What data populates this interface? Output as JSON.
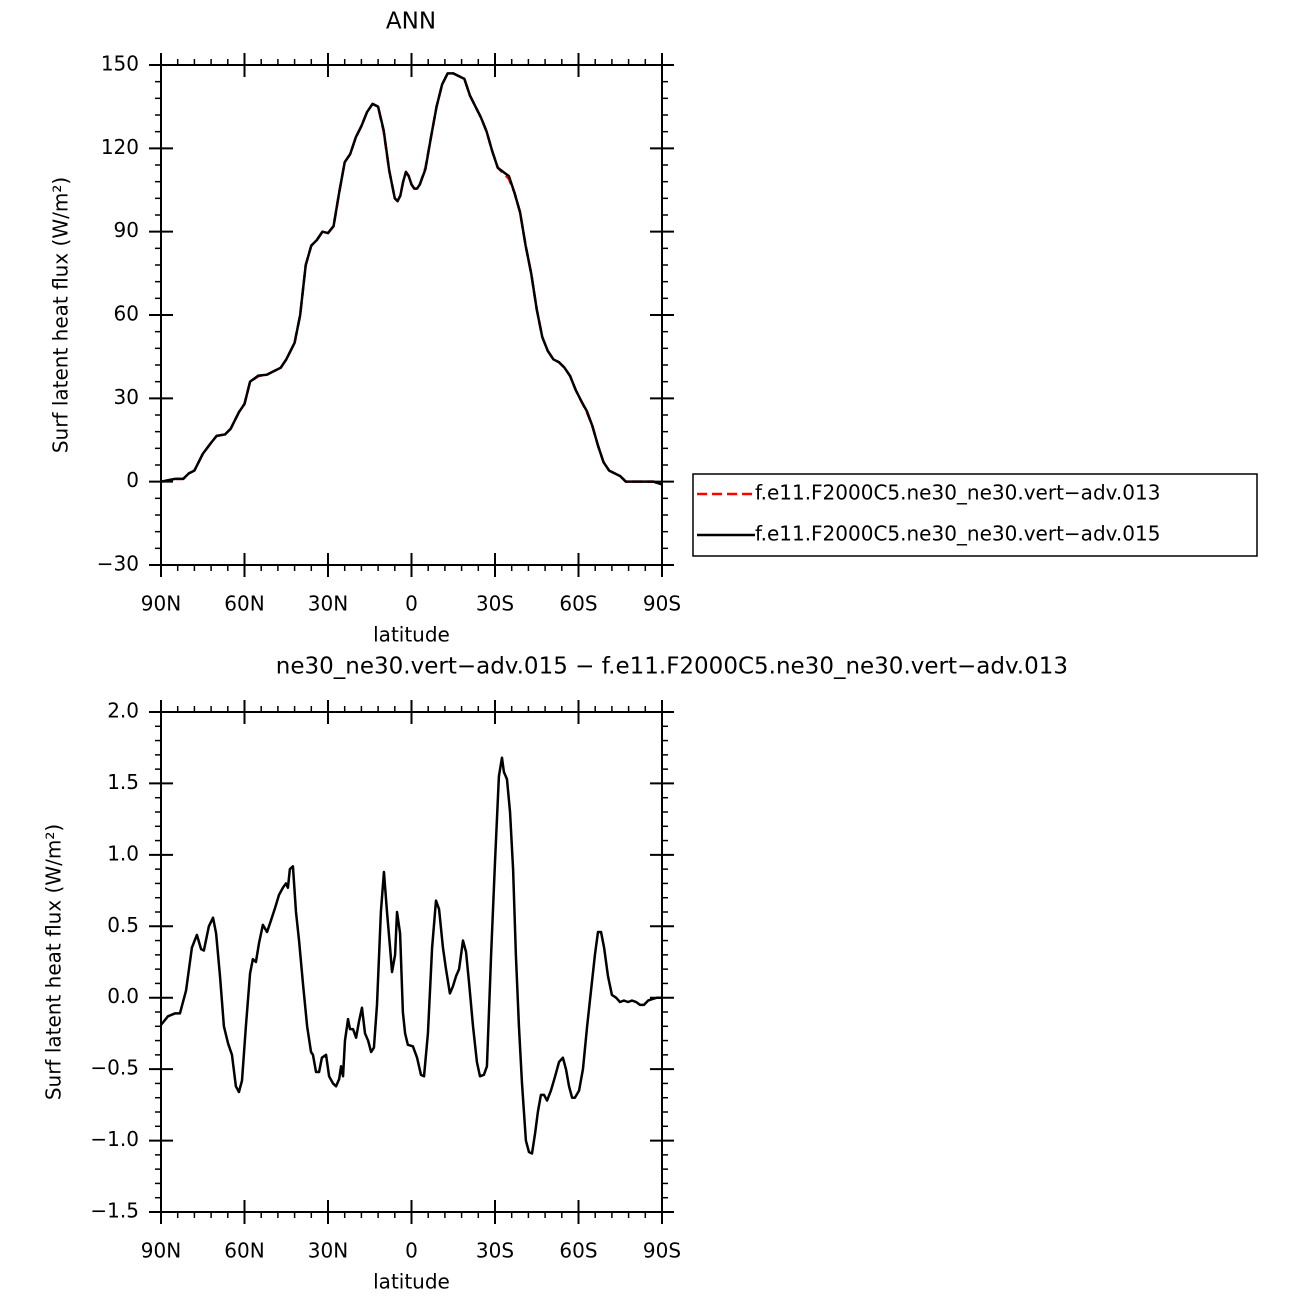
{
  "chart_data": [
    {
      "type": "line",
      "title": "ANN",
      "xlabel": "latitude",
      "ylabel": "Surf latent heat flux (W/m²)",
      "x": [
        90,
        85,
        82,
        80,
        78,
        75,
        72,
        70,
        67,
        65,
        62,
        60,
        58,
        55,
        52,
        50,
        47,
        45,
        42,
        40,
        38,
        36,
        34,
        32,
        30,
        28,
        26,
        24,
        22,
        20,
        18,
        16,
        14,
        12,
        10,
        8,
        6,
        5,
        4,
        3,
        2,
        1,
        0,
        -1,
        -2,
        -3,
        -5,
        -7,
        -9,
        -11,
        -13,
        -15,
        -17,
        -19,
        -21,
        -23,
        -25,
        -27,
        -29,
        -31,
        -33,
        -35,
        -37,
        -39,
        -41,
        -43,
        -45,
        -47,
        -49,
        -51,
        -53,
        -55,
        -57,
        -59,
        -61,
        -63,
        -65,
        -67,
        -69,
        -71,
        -73,
        -75,
        -77,
        -80,
        -83,
        -87,
        -90
      ],
      "series": [
        {
          "name": "f.e11.F2000C5.ne30_ne30.vert−adv.013",
          "color": "#ff0000",
          "dashed": true,
          "values": [
            0,
            1,
            1,
            3,
            4,
            10,
            14,
            16.5,
            17,
            19,
            25,
            28,
            36,
            38,
            38.5,
            39.5,
            41,
            44,
            50,
            60,
            78,
            85,
            87,
            90,
            89.5,
            92,
            104,
            115,
            118,
            124,
            128,
            133,
            136,
            135,
            126,
            112,
            102,
            101,
            103,
            108,
            111.5,
            110,
            107,
            105.5,
            105.5,
            107,
            113,
            124,
            135,
            143,
            147,
            147,
            146,
            145,
            139,
            135,
            131,
            126,
            119,
            113,
            111,
            109,
            104,
            97,
            85,
            75,
            62,
            52,
            47,
            44,
            43,
            41,
            38,
            33,
            29,
            25,
            20,
            13,
            7,
            4,
            3,
            2,
            0,
            0,
            0,
            0,
            -1
          ]
        },
        {
          "name": "f.e11.F2000C5.ne30_ne30.vert−adv.015",
          "color": "#000000",
          "dashed": false,
          "values": [
            0,
            1,
            1,
            3,
            4,
            10,
            14,
            16.5,
            17,
            19,
            25,
            28,
            36,
            38.2,
            38.5,
            39.5,
            41,
            44,
            50,
            60,
            78,
            85,
            87,
            90,
            89.5,
            92,
            104,
            115,
            118,
            124,
            128,
            133,
            136,
            135,
            126.5,
            112,
            102,
            101,
            103,
            108,
            111.5,
            110,
            107,
            105.5,
            105.5,
            107,
            112.5,
            124,
            135,
            143,
            147,
            147,
            146,
            145,
            139,
            135,
            131,
            126,
            119,
            113,
            111.5,
            110,
            104,
            97,
            85,
            75,
            62,
            52,
            47,
            44,
            43,
            41,
            38,
            33,
            29,
            25.4,
            20,
            13,
            7,
            4,
            3,
            2,
            0,
            0,
            0,
            0,
            -1
          ]
        }
      ],
      "xlim": [
        90,
        -90
      ],
      "ylim": [
        -30,
        150
      ],
      "xticks": [
        {
          "value": 90,
          "label": "90N"
        },
        {
          "value": 60,
          "label": "60N"
        },
        {
          "value": 30,
          "label": "30N"
        },
        0,
        {
          "value": -30,
          "label": "30S"
        },
        {
          "value": -60,
          "label": "60S"
        },
        {
          "value": -90,
          "label": "90S"
        }
      ],
      "yticks": [
        {
          "value": -30,
          "label": "−30"
        },
        0,
        30,
        60,
        90,
        120,
        150
      ],
      "legend": "right"
    },
    {
      "type": "line",
      "title": "ne30_ne30.vert−adv.015 − f.e11.F2000C5.ne30_ne30.vert−adv.013",
      "xlabel": "latitude",
      "ylabel": "Surf latent heat flux (W/m²)",
      "x": [
        90,
        87.5,
        85,
        83.2,
        81,
        78.9,
        77.1,
        75.6,
        74.6,
        72.8,
        71.3,
        70.2,
        68.8,
        67.4,
        65.9,
        64.5,
        63.1,
        62,
        60.9,
        59.5,
        58,
        57,
        55.9,
        54.8,
        53.4,
        51.9,
        50.5,
        49,
        47.6,
        46.2,
        45.1,
        44.4,
        43.7,
        42.6,
        41.5,
        40.4,
        39,
        37.5,
        36.1,
        35.4,
        34.3,
        33.2,
        32.2,
        30.7,
        29.6,
        28.2,
        27.1,
        26,
        25.3,
        24.6,
        23.9,
        22.8,
        22.1,
        21,
        19.9,
        18.9,
        17.8,
        16.7,
        15.6,
        14.5,
        13.5,
        12.4,
        11,
        9.9,
        8.8,
        7.7,
        7,
        5.9,
        5.2,
        4.1,
        3.1,
        2.3,
        1.3,
        -0.5,
        -2,
        -3.4,
        -4.5,
        -5.9,
        -7.4,
        -8.8,
        -9.9,
        -11.3,
        -12.4,
        -13.8,
        -14.9,
        -16,
        -17.1,
        -18.5,
        -19.6,
        -20.7,
        -22.1,
        -23.5,
        -24.6,
        -26,
        -27.1,
        -28.6,
        -30,
        -31.4,
        -32.5,
        -33.2,
        -34.3,
        -35.4,
        -36.5,
        -37.5,
        -38.6,
        -39.7,
        -41.1,
        -42.2,
        -43.3,
        -44.4,
        -45.4,
        -46.5,
        -47.6,
        -48.7,
        -50.1,
        -51.6,
        -53,
        -54.4,
        -55.5,
        -56.6,
        -57.7,
        -58.7,
        -60.2,
        -61.6,
        -63.1,
        -64.5,
        -65.9,
        -67,
        -68.1,
        -69.2,
        -70.6,
        -72,
        -73.5,
        -74.9,
        -76.3,
        -77.8,
        -79.2,
        -80.7,
        -82.1,
        -83.5,
        -85,
        -86.4,
        -88.2,
        -90
      ],
      "series": [
        {
          "color": "#000000",
          "dashed": false,
          "values": [
            -0.19,
            -0.13,
            -0.11,
            -0.11,
            0.05,
            0.35,
            0.44,
            0.34,
            0.33,
            0.5,
            0.56,
            0.45,
            0.15,
            -0.2,
            -0.32,
            -0.4,
            -0.62,
            -0.66,
            -0.58,
            -0.2,
            0.17,
            0.27,
            0.25,
            0.38,
            0.51,
            0.46,
            0.54,
            0.63,
            0.72,
            0.77,
            0.8,
            0.77,
            0.9,
            0.92,
            0.6,
            0.4,
            0.1,
            -0.2,
            -0.38,
            -0.4,
            -0.52,
            -0.52,
            -0.42,
            -0.4,
            -0.55,
            -0.6,
            -0.62,
            -0.57,
            -0.48,
            -0.55,
            -0.3,
            -0.15,
            -0.22,
            -0.22,
            -0.28,
            -0.17,
            -0.07,
            -0.25,
            -0.3,
            -0.38,
            -0.35,
            -0.05,
            0.6,
            0.88,
            0.6,
            0.35,
            0.18,
            0.3,
            0.6,
            0.45,
            -0.1,
            -0.25,
            -0.33,
            -0.34,
            -0.42,
            -0.54,
            -0.55,
            -0.25,
            0.35,
            0.68,
            0.62,
            0.35,
            0.2,
            0.03,
            0.08,
            0.15,
            0.2,
            0.4,
            0.32,
            0.1,
            -0.2,
            -0.45,
            -0.55,
            -0.54,
            -0.48,
            0.3,
            0.95,
            1.55,
            1.68,
            1.58,
            1.53,
            1.3,
            0.9,
            0.3,
            -0.2,
            -0.6,
            -1,
            -1.08,
            -1.09,
            -0.95,
            -0.8,
            -0.68,
            -0.68,
            -0.72,
            -0.65,
            -0.55,
            -0.45,
            -0.42,
            -0.5,
            -0.62,
            -0.7,
            -0.7,
            -0.65,
            -0.5,
            -0.2,
            0.05,
            0.3,
            0.46,
            0.46,
            0.35,
            0.15,
            0.02,
            0,
            -0.03,
            -0.02,
            -0.03,
            -0.02,
            -0.03,
            -0.05,
            -0.05,
            -0.02,
            -0.01,
            0,
            0
          ]
        }
      ],
      "xlim": [
        90,
        -90
      ],
      "ylim": [
        -1.5,
        2
      ],
      "xticks": [
        {
          "value": 90,
          "label": "90N"
        },
        {
          "value": 60,
          "label": "60N"
        },
        {
          "value": 30,
          "label": "30N"
        },
        0,
        {
          "value": -30,
          "label": "30S"
        },
        {
          "value": -60,
          "label": "60S"
        },
        {
          "value": -90,
          "label": "90S"
        }
      ],
      "yticks": [
        {
          "value": -1.5,
          "label": "−1.5"
        },
        {
          "value": -1,
          "label": "−1.0"
        },
        {
          "value": -0.5,
          "label": "−0.5"
        },
        {
          "value": 0,
          "label": "0.0"
        },
        {
          "value": 0.5,
          "label": "0.5"
        },
        {
          "value": 1,
          "label": "1.0"
        },
        {
          "value": 1.5,
          "label": "1.5"
        },
        {
          "value": 2,
          "label": "2.0"
        }
      ]
    }
  ]
}
